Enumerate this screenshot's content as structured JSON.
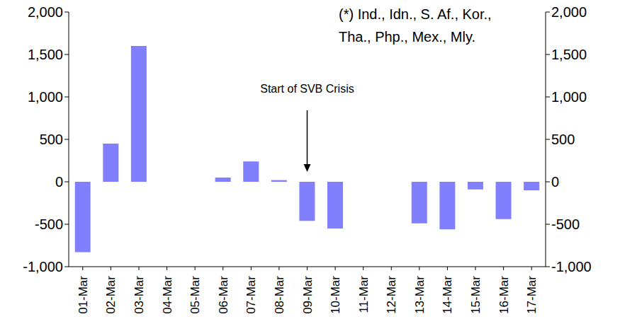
{
  "chart_data": {
    "type": "bar",
    "categories": [
      "01-Mar",
      "02-Mar",
      "03-Mar",
      "04-Mar",
      "05-Mar",
      "06-Mar",
      "07-Mar",
      "08-Mar",
      "09-Mar",
      "10-Mar",
      "11-Mar",
      "12-Mar",
      "13-Mar",
      "14-Mar",
      "15-Mar",
      "16-Mar",
      "17-Mar"
    ],
    "values": [
      -830,
      450,
      1600,
      null,
      null,
      50,
      240,
      20,
      -460,
      -550,
      null,
      null,
      -490,
      -560,
      -90,
      -440,
      -100
    ],
    "color": "#8080ff",
    "ylim": [
      -1000,
      2000
    ],
    "yticks": [
      {
        "value": -1000,
        "label": "-1,000"
      },
      -500,
      0,
      500,
      {
        "value": 1000,
        "label": "1,000"
      },
      {
        "value": 1500,
        "label": "1,500"
      },
      {
        "value": 2000,
        "label": "2,000"
      }
    ],
    "y2lim": [
      -1000,
      2000
    ],
    "y2ticks": [
      {
        "value": -1000,
        "label": "-1,000"
      },
      -500,
      0,
      500,
      {
        "value": 1000,
        "label": "1,000"
      },
      {
        "value": 1500,
        "label": "1,500"
      },
      {
        "value": 2000,
        "label": "2,000"
      }
    ],
    "annotations": [
      {
        "text": "Start of SVB Crisis",
        "category": "09-Mar"
      },
      {
        "text": "(*) Ind., Idn., S. Af., Kor.,"
      },
      {
        "text": "Tha., Php., Mex., Mly."
      }
    ],
    "grid": false
  }
}
